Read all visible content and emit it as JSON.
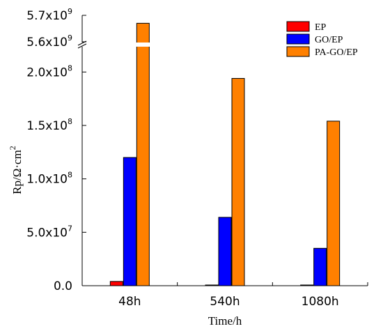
{
  "chart_data": {
    "type": "bar",
    "categories": [
      "48h",
      "540h",
      "1080h"
    ],
    "series": [
      {
        "name": "EP",
        "color": "#ff0000",
        "values": [
          4000000,
          600000,
          400000
        ]
      },
      {
        "name": "GO/EP",
        "color": "#0000ff",
        "values": [
          120000000,
          64000000,
          35000000
        ]
      },
      {
        "name": "PA-GO/EP",
        "color": "#ff8000",
        "values": [
          5670000000,
          194000000,
          154000000
        ]
      }
    ],
    "xlabel": "Time/h",
    "ylabel": "Rp/Ω·cm",
    "ylabel_sup": "2",
    "ylim_lower": [
      0,
      210000000
    ],
    "ylim_upper": [
      5600000000,
      5700000000
    ],
    "axis_break": true,
    "legend_position": "top-right",
    "grid": false,
    "yticks": [
      {
        "value": 0,
        "mantissa": "0.0",
        "exp": ""
      },
      {
        "value": 50000000,
        "mantissa": "5.0x10",
        "exp": "7"
      },
      {
        "value": 100000000,
        "mantissa": "1.0x10",
        "exp": "8"
      },
      {
        "value": 150000000,
        "mantissa": "1.5x10",
        "exp": "8"
      },
      {
        "value": 200000000,
        "mantissa": "2.0x10",
        "exp": "8"
      },
      {
        "value": 5600000000,
        "mantissa": "5.6x10",
        "exp": "9"
      },
      {
        "value": 5700000000,
        "mantissa": "5.7x10",
        "exp": "9"
      }
    ]
  }
}
